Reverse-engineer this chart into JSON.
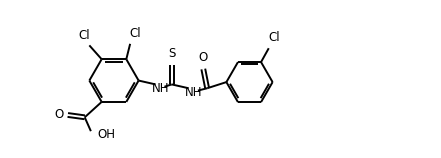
{
  "line_color": "#000000",
  "bg_color": "#ffffff",
  "linewidth": 1.4,
  "fontsize": 8.5,
  "figsize": [
    4.41,
    1.58
  ],
  "dpi": 100,
  "xlim": [
    0,
    44.1
  ],
  "ylim": [
    0,
    15.8
  ]
}
